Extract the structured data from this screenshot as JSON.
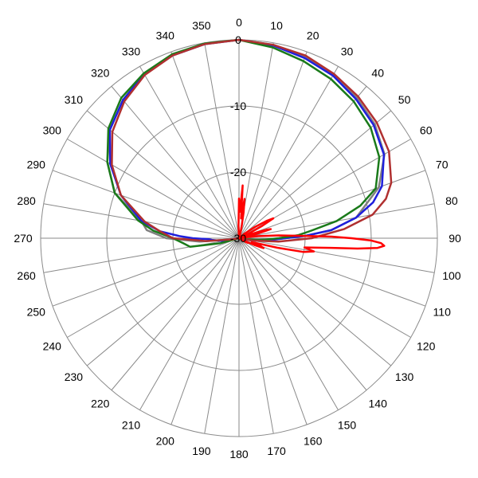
{
  "chart_data": {
    "type": "polar-line",
    "title": "",
    "angle_direction": "clockwise",
    "zero_angle_position": "top",
    "angle_step_deg": 10,
    "angle_labels": [
      "0",
      "10",
      "20",
      "30",
      "40",
      "50",
      "60",
      "70",
      "80",
      "90",
      "100",
      "110",
      "120",
      "130",
      "140",
      "150",
      "160",
      "170",
      "180",
      "190",
      "200",
      "210",
      "220",
      "230",
      "240",
      "250",
      "260",
      "270",
      "280",
      "290",
      "300",
      "310",
      "320",
      "330",
      "340",
      "350"
    ],
    "radial_range": [
      -30,
      0
    ],
    "radial_ticks": [
      0,
      -10,
      -20,
      -30
    ],
    "radial_tick_labels": [
      "0",
      "-10",
      "-20",
      "-30"
    ],
    "outer_ring": -30,
    "grid": true,
    "legend": "none",
    "series": [
      {
        "color": "#7f7f7f",
        "angles": [
          0,
          10,
          20,
          30,
          40,
          50,
          60,
          70,
          80,
          85,
          88,
          90,
          92,
          95,
          100,
          110,
          180,
          250,
          260,
          265,
          270,
          275,
          280,
          290,
          300,
          310,
          320,
          330,
          340,
          350,
          360
        ],
        "values": [
          0,
          -0.3,
          -0.8,
          -1.5,
          -2.3,
          -3.2,
          -4.6,
          -7.5,
          -12,
          -16,
          -20,
          -23,
          -25,
          -28,
          -30,
          -30,
          -30,
          -30,
          -29,
          -24,
          -19,
          -16,
          -15,
          -10,
          -7,
          -4.5,
          -2.7,
          -1.3,
          -0.5,
          -0.1,
          0
        ]
      },
      {
        "color": "#1f1fdd",
        "angles": [
          0,
          10,
          20,
          30,
          40,
          50,
          60,
          70,
          75,
          80,
          85,
          88,
          90,
          92,
          95,
          100,
          110,
          180,
          250,
          260,
          263,
          266,
          268,
          270,
          272,
          275,
          280,
          290,
          300,
          310,
          320,
          330,
          340,
          350,
          360
        ],
        "values": [
          0,
          -0.4,
          -1,
          -1.6,
          -2.5,
          -3.4,
          -4.7,
          -7,
          -9,
          -12,
          -16,
          -20,
          -23,
          -24.5,
          -26,
          -28,
          -30,
          -30,
          -30,
          -27.5,
          -27,
          -26,
          -25.5,
          -23,
          -21,
          -18,
          -15,
          -11,
          -7.5,
          -4.5,
          -2.7,
          -1.4,
          -0.6,
          -0.2,
          0
        ]
      },
      {
        "color": "#1a7a1a",
        "angles": [
          0,
          10,
          20,
          30,
          40,
          50,
          60,
          70,
          75,
          80,
          84,
          87,
          90,
          93,
          95,
          100,
          110,
          180,
          250,
          255,
          260,
          265,
          270,
          275,
          280,
          290,
          300,
          310,
          320,
          330,
          340,
          350,
          360
        ],
        "values": [
          0,
          -0.7,
          -1.5,
          -2.2,
          -3,
          -4,
          -5.5,
          -8,
          -11,
          -15,
          -19,
          -21,
          -24,
          -26,
          -27,
          -29,
          -30,
          -30,
          -30,
          -27,
          -22.5,
          -21.5,
          -20,
          -17,
          -14.5,
          -10,
          -7,
          -4.2,
          -2.3,
          -1.2,
          -0.4,
          -0.1,
          0
        ]
      },
      {
        "color": "#b03030",
        "angles": [
          0,
          10,
          20,
          30,
          40,
          50,
          60,
          70,
          75,
          80,
          85,
          90,
          95,
          100,
          110,
          180,
          250,
          260,
          265,
          270,
          275,
          280,
          290,
          300,
          310,
          320,
          330,
          340,
          350,
          360
        ],
        "values": [
          0,
          -0.3,
          -0.6,
          -1.3,
          -2,
          -2.8,
          -3.8,
          -5.5,
          -7,
          -9.5,
          -14,
          -19,
          -24,
          -28,
          -30,
          -30,
          -30,
          -29,
          -25,
          -20,
          -18,
          -15.5,
          -11,
          -7.8,
          -5,
          -3,
          -1.5,
          -0.6,
          -0.2,
          0
        ]
      },
      {
        "color": "#ff0000",
        "angles": [
          0,
          2,
          4,
          6,
          8,
          10,
          12,
          15,
          20,
          25,
          30,
          35,
          40,
          45,
          50,
          55,
          58,
          60,
          62,
          64,
          66,
          68,
          70,
          72,
          73,
          74,
          76,
          78,
          80,
          82,
          84,
          86,
          88,
          89,
          90,
          91,
          92,
          93,
          94,
          95,
          96,
          98,
          100,
          102,
          104,
          106,
          108,
          110,
          112,
          114,
          116,
          118,
          120,
          125,
          130,
          135,
          140,
          145,
          150,
          155,
          160,
          165,
          170,
          175,
          180,
          185,
          190,
          195,
          200,
          210,
          220,
          230,
          240,
          250,
          260,
          270,
          280,
          290,
          300,
          310,
          320,
          330,
          340,
          350,
          355,
          358,
          360
        ],
        "values": [
          -24,
          -26,
          -22,
          -27,
          -24,
          -26,
          -28,
          -29,
          -30,
          -30,
          -30,
          -30,
          -30,
          -30,
          -29,
          -27,
          -25,
          -24,
          -26,
          -28,
          -29,
          -30,
          -29,
          -27,
          -25.5,
          -25,
          -27,
          -29,
          -30,
          -29,
          -27,
          -24,
          -20,
          -16,
          -13,
          -10,
          -8.5,
          -8,
          -9,
          -12,
          -16,
          -20,
          -18.5,
          -20,
          -24,
          -27.5,
          -28,
          -26.5,
          -26,
          -27.5,
          -29,
          -28.5,
          -29,
          -30,
          -30,
          -30,
          -30,
          -30,
          -30,
          -30,
          -30,
          -30,
          -30,
          -30,
          -30,
          -30,
          -30,
          -30,
          -30,
          -30,
          -30,
          -30,
          -30,
          -30,
          -30,
          -30,
          -30,
          -30,
          -30,
          -30,
          -30,
          -30,
          -30,
          -30,
          -30,
          -28,
          -24
        ]
      }
    ]
  }
}
